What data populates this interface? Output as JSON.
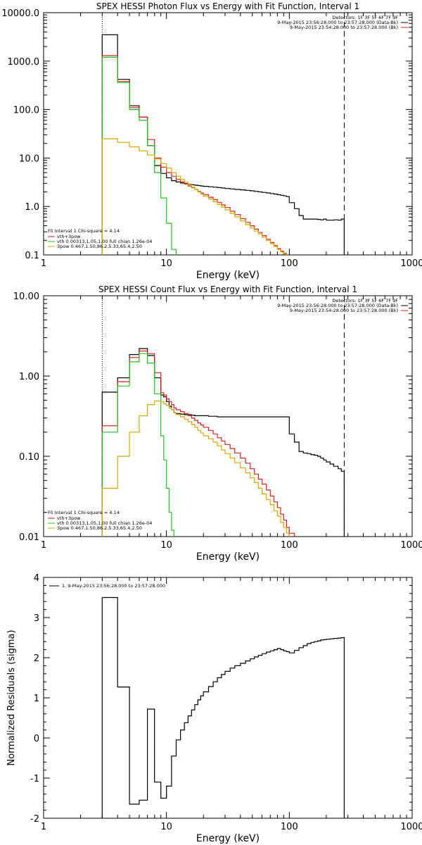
{
  "chart_data": [
    {
      "type": "line",
      "title": "SPEX HESSI Photon Flux vs Energy with Fit Function, Interval 1",
      "xlabel": "Energy (keV)",
      "ylabel": "",
      "xscale": "log",
      "yscale": "log",
      "xlim": [
        1,
        1000
      ],
      "ylim": [
        0.1,
        10000
      ],
      "xticks": [
        1,
        10,
        100,
        1000
      ],
      "xtick_labels": [
        "1",
        "10",
        "100",
        "1000"
      ],
      "yticks": [
        0.1,
        1,
        10,
        100,
        1000,
        10000
      ],
      "ytick_labels": [
        "0.1",
        "1.0",
        "10.0",
        "100.0",
        "1000.0",
        "10000.0"
      ],
      "vlines": [
        {
          "x": 3,
          "style": "dotted"
        },
        {
          "x": 280,
          "style": "dashed"
        }
      ],
      "legend_top_right": [
        "Detectors: 1F 3F 5F 6F 7F 9F",
        "9-May-2015 23:56:28.000 to 23:57:28.000 (Data-Bk)",
        "9-May-2015 23:54:28.000 to 23:57:28.000 (Bk)"
      ],
      "legend_top_right_colors": [
        "",
        "#000000",
        "#d62020"
      ],
      "legend_bottom_left": {
        "header": "Fit Interval 1    Chi-square = 4.14",
        "entries": [
          {
            "label": "vth+3pow",
            "color": "#d62020"
          },
          {
            "label": "vth 0.00313,1.05,1.00  full chian 1.26e-04",
            "color": "#20c020"
          },
          {
            "label": "3pow 0.467,1.50,86.2,5.33,65.4,2.50",
            "color": "#d8a800"
          }
        ]
      },
      "edges": [
        3,
        4,
        5,
        6,
        7,
        8,
        9,
        10,
        11,
        12,
        13,
        14,
        15,
        16,
        17,
        18,
        19,
        20,
        22,
        24,
        26,
        28,
        30,
        33,
        36,
        40,
        44,
        48,
        52,
        56,
        60,
        65,
        70,
        75,
        80,
        85,
        90,
        95,
        100,
        110,
        120,
        130,
        140,
        150,
        160,
        170,
        180,
        190,
        200,
        215,
        230,
        250,
        265,
        280
      ],
      "series": [
        {
          "name": "Data-Bk",
          "color": "#000000",
          "values": [
            3500,
            420,
            120,
            70,
            18,
            7.0,
            4.8,
            3.9,
            3.4,
            3.2,
            3.05,
            2.95,
            2.85,
            2.8,
            2.75,
            2.7,
            2.65,
            2.6,
            2.55,
            2.5,
            2.45,
            2.4,
            2.35,
            2.3,
            2.25,
            2.2,
            2.15,
            2.1,
            2.05,
            2.0,
            1.95,
            1.9,
            1.85,
            1.8,
            1.75,
            1.7,
            1.65,
            1.6,
            1.2,
            0.9,
            0.65,
            0.55,
            0.55,
            0.55,
            0.55,
            0.54,
            0.53,
            0.55,
            0.52,
            0.52,
            0.53,
            0.52,
            0.55
          ]
        },
        {
          "name": "vth+3pow",
          "color": "#d62020",
          "values": [
            1300,
            380,
            110,
            70,
            24,
            10,
            6.5,
            5.0,
            4.2,
            3.6,
            3.2,
            2.9,
            2.65,
            2.45,
            2.25,
            2.05,
            1.9,
            1.75,
            1.55,
            1.38,
            1.22,
            1.08,
            0.95,
            0.8,
            0.68,
            0.56,
            0.47,
            0.4,
            0.34,
            0.29,
            0.25,
            0.21,
            0.18,
            0.155,
            0.135,
            0.12,
            0.108,
            0.097,
            0.085,
            null,
            null,
            null,
            null,
            null,
            null,
            null,
            null,
            null,
            null,
            null,
            null,
            null,
            null
          ]
        },
        {
          "name": "vth",
          "color": "#20c020",
          "values": [
            1200,
            360,
            100,
            60,
            18,
            5.0,
            1.5,
            0.45,
            0.13,
            null,
            null,
            null,
            null,
            null,
            null,
            null,
            null,
            null,
            null,
            null,
            null,
            null,
            null,
            null,
            null,
            null,
            null,
            null,
            null,
            null,
            null,
            null,
            null,
            null,
            null,
            null,
            null,
            null,
            null,
            null,
            null,
            null,
            null,
            null,
            null,
            null,
            null,
            null,
            null,
            null,
            null,
            null,
            null
          ]
        },
        {
          "name": "3pow",
          "color": "#d8a800",
          "values": [
            25,
            21,
            17,
            14,
            11.5,
            9.5,
            7.7,
            6.2,
            5.0,
            4.2,
            3.6,
            3.15,
            2.8,
            2.5,
            2.25,
            2.0,
            1.8,
            1.62,
            1.42,
            1.25,
            1.1,
            0.97,
            0.85,
            0.72,
            0.61,
            0.5,
            0.42,
            0.36,
            0.31,
            0.27,
            0.23,
            0.2,
            0.17,
            0.15,
            0.13,
            0.115,
            0.105,
            0.095,
            0.085,
            null,
            null,
            null,
            null,
            null,
            null,
            null,
            null,
            null,
            null,
            null,
            null,
            null,
            null
          ]
        }
      ]
    },
    {
      "type": "line",
      "title": "SPEX HESSI Count Flux vs Energy with Fit Function, Interval 1",
      "xlabel": "Energy (keV)",
      "ylabel": "",
      "xscale": "log",
      "yscale": "log",
      "xlim": [
        1,
        1000
      ],
      "ylim": [
        0.01,
        10
      ],
      "xticks": [
        1,
        10,
        100,
        1000
      ],
      "xtick_labels": [
        "1",
        "10",
        "100",
        "1000"
      ],
      "yticks": [
        0.01,
        0.1,
        1,
        10
      ],
      "ytick_labels": [
        "0.01",
        "0.10",
        "1.00",
        "10.00"
      ],
      "vlines": [
        {
          "x": 3,
          "style": "dotted"
        },
        {
          "x": 280,
          "style": "dashed"
        }
      ],
      "legend_top_right": [
        "Detectors: 1F 3F 5F 6F 7F 9F",
        "9-May-2015 23:56:28.000 to 23:57:28.000 (Data-Bk)",
        "9-May-2015 23:54:28.000 to 23:57:28.000 (Bk)"
      ],
      "legend_top_right_colors": [
        "",
        "#000000",
        "#d62020"
      ],
      "legend_bottom_left": {
        "header": "Fit Interval 1    Chi-square = 4.14",
        "entries": [
          {
            "label": "vth+3pow",
            "color": "#d62020"
          },
          {
            "label": "vth 0.00313,1.05,1.00  full chian 1.26e-04",
            "color": "#20c020"
          },
          {
            "label": "3pow 0.467,1.50,86.2,5.33,65.4,2.50",
            "color": "#d8a800"
          }
        ]
      },
      "edges": [
        3,
        3.5,
        4,
        4.5,
        5,
        5.5,
        6,
        6.5,
        7,
        7.5,
        8,
        8.5,
        9,
        9.5,
        10,
        10.5,
        11,
        11.5,
        12,
        13,
        14,
        15,
        16,
        17,
        18,
        19,
        20,
        22,
        24,
        26,
        28,
        30,
        33,
        36,
        40,
        44,
        48,
        52,
        56,
        60,
        65,
        70,
        75,
        80,
        85,
        90,
        95,
        100,
        110,
        120,
        130,
        140,
        150,
        160,
        170,
        180,
        190,
        200,
        215,
        230,
        250,
        265,
        280
      ],
      "series": [
        {
          "name": "Data-Bk",
          "color": "#000000",
          "values": [
            0.63,
            0.63,
            0.95,
            0.95,
            1.85,
            1.85,
            2.2,
            2.2,
            1.8,
            1.8,
            0.95,
            0.95,
            0.58,
            0.55,
            0.48,
            0.42,
            0.38,
            0.35,
            0.34,
            0.335,
            0.33,
            0.33,
            0.325,
            0.32,
            0.32,
            0.32,
            0.32,
            0.315,
            0.315,
            0.31,
            0.31,
            0.31,
            0.31,
            0.31,
            0.31,
            0.31,
            0.31,
            0.31,
            0.31,
            0.31,
            0.31,
            0.31,
            0.31,
            0.31,
            0.31,
            0.31,
            0.31,
            0.19,
            0.15,
            0.115,
            0.11,
            0.108,
            0.105,
            0.103,
            0.1,
            0.095,
            0.09,
            0.085,
            0.08,
            0.075,
            0.07,
            0.065
          ]
        },
        {
          "name": "vth+3pow",
          "color": "#d62020",
          "values": [
            0.24,
            0.24,
            0.85,
            0.85,
            1.7,
            1.7,
            2.05,
            2.05,
            1.9,
            1.9,
            1.1,
            1.1,
            0.62,
            0.58,
            0.52,
            0.48,
            0.44,
            0.4,
            0.38,
            0.36,
            0.34,
            0.32,
            0.3,
            0.28,
            0.26,
            0.245,
            0.23,
            0.21,
            0.19,
            0.17,
            0.155,
            0.14,
            0.125,
            0.11,
            0.095,
            0.082,
            0.07,
            0.06,
            0.052,
            0.045,
            0.038,
            0.032,
            0.027,
            0.023,
            0.019,
            0.016,
            0.013,
            0.011,
            null,
            null,
            null,
            null,
            null,
            null,
            null,
            null,
            null,
            null,
            null,
            null,
            null,
            null
          ]
        },
        {
          "name": "vth",
          "color": "#20c020",
          "values": [
            0.2,
            0.2,
            0.75,
            0.75,
            1.5,
            1.5,
            1.9,
            1.9,
            1.45,
            1.45,
            0.6,
            0.6,
            0.18,
            0.09,
            0.04,
            0.02,
            0.012,
            null,
            null,
            null,
            null,
            null,
            null,
            null,
            null,
            null,
            null,
            null,
            null,
            null,
            null,
            null,
            null,
            null,
            null,
            null,
            null,
            null,
            null,
            null,
            null,
            null,
            null,
            null,
            null,
            null,
            null,
            null,
            null,
            null,
            null,
            null,
            null,
            null,
            null,
            null,
            null,
            null,
            null,
            null,
            null,
            null
          ]
        },
        {
          "name": "3pow",
          "color": "#d8a800",
          "values": [
            0.04,
            0.04,
            0.1,
            0.1,
            0.2,
            0.2,
            0.32,
            0.32,
            0.44,
            0.44,
            0.49,
            0.49,
            0.48,
            0.45,
            0.43,
            0.4,
            0.38,
            0.35,
            0.33,
            0.31,
            0.29,
            0.27,
            0.25,
            0.23,
            0.21,
            0.195,
            0.18,
            0.165,
            0.15,
            0.135,
            0.12,
            0.108,
            0.095,
            0.083,
            0.072,
            0.062,
            0.054,
            0.047,
            0.04,
            0.034,
            0.029,
            0.025,
            0.021,
            0.018,
            0.015,
            0.013,
            0.011,
            null,
            null,
            null,
            null,
            null,
            null,
            null,
            null,
            null,
            null,
            null,
            null,
            null,
            null,
            null
          ]
        }
      ]
    },
    {
      "type": "line",
      "title": "",
      "xlabel": "Energy (keV)",
      "ylabel": "Normalized Residuals (sigma)",
      "xscale": "log",
      "yscale": "linear",
      "xlim": [
        1,
        1000
      ],
      "ylim": [
        -2,
        4
      ],
      "xticks": [
        1,
        10,
        100,
        1000
      ],
      "xtick_labels": [
        "1",
        "10",
        "100",
        "1000"
      ],
      "yticks": [
        -2,
        -1,
        0,
        1,
        2,
        3,
        4
      ],
      "ytick_labels": [
        "-2",
        "-1",
        "0",
        "1",
        "2",
        "3",
        "4"
      ],
      "legend_top_left": "1.  9-May-2015 23:56:28.000 to 23:57:28.000",
      "edges": [
        3,
        4,
        5,
        6,
        7,
        8,
        9,
        10,
        11,
        12,
        13,
        14,
        15,
        16,
        17,
        18,
        19,
        20,
        22,
        24,
        26,
        28,
        30,
        33,
        36,
        40,
        44,
        48,
        52,
        56,
        60,
        65,
        70,
        75,
        80,
        85,
        90,
        95,
        100,
        110,
        120,
        130,
        140,
        150,
        160,
        170,
        180,
        190,
        200,
        215,
        230,
        250,
        265,
        280
      ],
      "series": [
        {
          "name": "1.",
          "color": "#000000",
          "values": [
            3.5,
            1.27,
            -1.65,
            -1.55,
            0.72,
            -1.1,
            -1.5,
            -1.2,
            -0.45,
            -0.05,
            0.2,
            0.38,
            0.55,
            0.7,
            0.83,
            0.95,
            1.05,
            1.15,
            1.28,
            1.4,
            1.5,
            1.58,
            1.66,
            1.74,
            1.8,
            1.86,
            1.92,
            1.97,
            2.02,
            2.06,
            2.1,
            2.14,
            2.17,
            2.2,
            2.23,
            2.2,
            2.17,
            2.15,
            2.12,
            2.18,
            2.25,
            2.3,
            2.35,
            2.38,
            2.4,
            2.42,
            2.44,
            2.45,
            2.46,
            2.47,
            2.48,
            2.49,
            2.5
          ]
        }
      ]
    }
  ]
}
